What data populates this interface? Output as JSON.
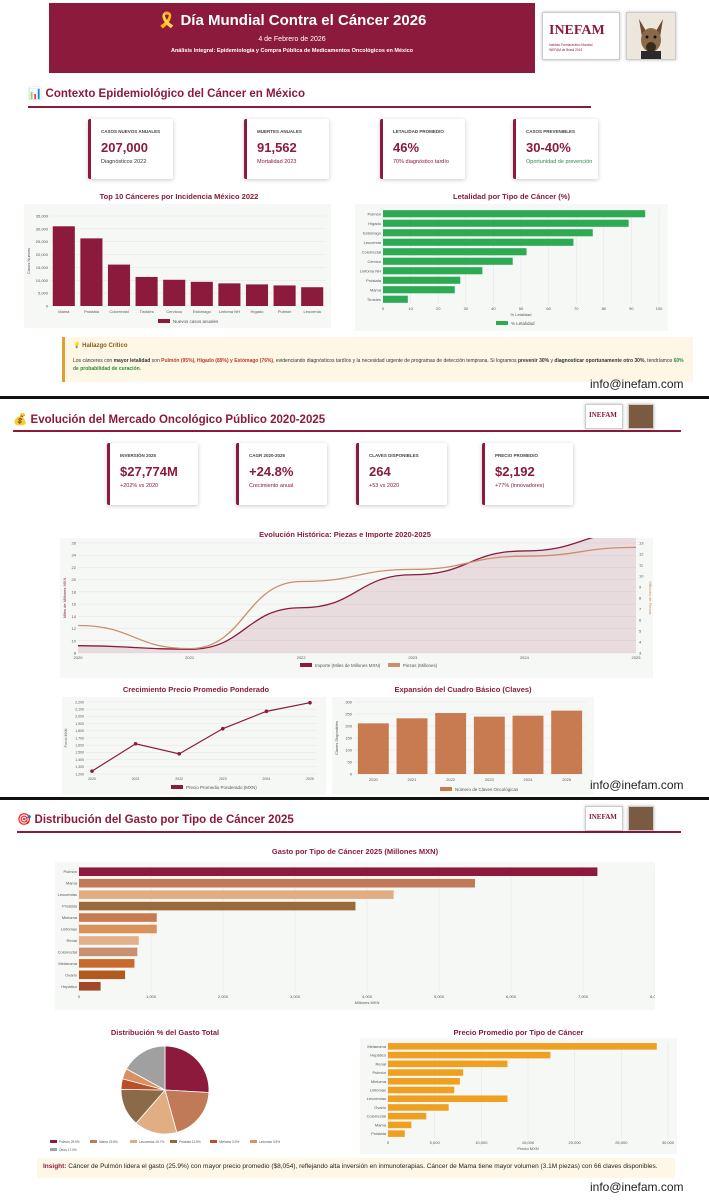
{
  "header": {
    "title": "Día Mundial Contra el Cáncer 2026",
    "date": "4 de Febrero de 2026",
    "subtitle": "Análisis Integral: Epidemiología y Compra Pública de Medicamentos Oncológicos en México",
    "ribbon_icon": "ribbon-icon"
  },
  "logo": {
    "word": "INEFAM",
    "tagline": "Instituto Farmacéutico Mundial",
    "tagline2": "INEFAM de Brasil 2014"
  },
  "email": "info@inefam.com",
  "section1": {
    "icon": "📊",
    "title": "Contexto Epidemiológico del Cáncer en México",
    "kpis": [
      {
        "label": "Casos nuevos anuales",
        "value": "207,000",
        "note": "Diagnósticos 2022",
        "note_color": "#333333"
      },
      {
        "label": "Muertes anuales",
        "value": "91,562",
        "note": "Mortalidad 2023",
        "note_color": "#8b1a3c"
      },
      {
        "label": "Letalidad promedio",
        "value": "46%",
        "note": "70% diagnóstico tardío",
        "note_color": "#8b1a3c"
      },
      {
        "label": "Casos prevenibles",
        "value": "30-40%",
        "note": "Oportunidad de prevención",
        "note_color": "#2e8b3a"
      }
    ],
    "alert": {
      "title": "💡 Hallazgo Crítico",
      "p1": "Los cánceres con ",
      "s1": "mayor letalidad",
      "p2": " son ",
      "s2": "Pulmón (95%), Hígado (89%) y Estómago (76%)",
      "p3": ", evidenciando diagnósticos tardíos y la necesidad urgente de programas de detección temprana. Si logramos ",
      "s3": "prevenir 30%",
      "p4": " y ",
      "s4": "diagnosticar oportunamente otro 30%",
      "p5": ", tendríamos ",
      "s5": "60% de probabilidad de curación",
      "p6": "."
    }
  },
  "section2": {
    "icon": "💰",
    "title": "Evolución del Mercado Oncológico Público 2020-2025",
    "kpis": [
      {
        "label": "Inversión 2025",
        "value": "$27,774M",
        "note": "+202% vs 2020",
        "note_color": "#8b1a3c"
      },
      {
        "label": "CAGR 2020-2025",
        "value": "+24.8%",
        "note": "Crecimiento anual",
        "note_color": "#8b1a3c"
      },
      {
        "label": "Claves disponibles",
        "value": "264",
        "note": "+53 vs 2020",
        "note_color": "#8b1a3c"
      },
      {
        "label": "Precio promedio",
        "value": "$2,192",
        "note": "+77% (innovadores)",
        "note_color": "#8b1a3c"
      }
    ]
  },
  "section3": {
    "icon": "🎯",
    "title": "Distribución del Gasto por Tipo de Cáncer 2025",
    "insight_label": "Insight:",
    "insight_text": " Cáncer de Pulmón lidera el gasto (25.9%) con mayor precio promedio ($8,054), reflejando alta inversión en inmunoterapias. Cáncer de Mama tiene mayor volumen (3.1M piezas) con 66 claves disponibles."
  },
  "chart_data": [
    {
      "id": "top10",
      "type": "bar",
      "title": "Top 10 Cánceres por Incidencia México 2022",
      "ylabel": "Casos Nuevos",
      "legend": "Nuevos casos anuales",
      "ylim": [
        0,
        35000
      ],
      "yticks": [
        "0",
        "5,000",
        "10,000",
        "15,000",
        "20,000",
        "25,000",
        "30,000",
        "35,000"
      ],
      "categories": [
        "Mama",
        "Próstata",
        "Colorrectal",
        "Tiroides",
        "Cervicou",
        "Estómago",
        "Linfoma NH",
        "Hígado",
        "Pulmón",
        "Leucemia"
      ],
      "values": [
        31000,
        26300,
        16100,
        11300,
        10200,
        9400,
        8800,
        8400,
        8000,
        7300
      ],
      "color": "#8b1a3c"
    },
    {
      "id": "letalidad",
      "type": "bar",
      "orientation": "horizontal",
      "title": "Letalidad por Tipo de Cáncer (%)",
      "xlabel": "% Letalidad",
      "legend": "% Letalidad",
      "xlim": [
        0,
        100
      ],
      "xticks": [
        "0",
        "10",
        "20",
        "30",
        "40",
        "50",
        "60",
        "70",
        "80",
        "90",
        "100"
      ],
      "categories": [
        "Pulmón",
        "Hígado",
        "Estómago",
        "Leucemia",
        "Colorrectal",
        "Cérvico",
        "Linfoma NH",
        "Próstata",
        "Mama",
        "Tiroides"
      ],
      "values": [
        95,
        89,
        76,
        69,
        52,
        47,
        36,
        28,
        26,
        9
      ],
      "color": "#2eaa55"
    },
    {
      "id": "evolucion",
      "type": "line",
      "title": "Evolución Histórica: Piezas e Importe 2020-2025",
      "ylabel_left": "Miles de Millones MXN",
      "ylabel_right": "Millones de Piezas",
      "x": [
        "2020",
        "2021",
        "2022",
        "2023",
        "2024",
        "2025"
      ],
      "ylim_left": [
        8,
        26
      ],
      "yticks_left": [
        "8",
        "10",
        "12",
        "14",
        "16",
        "18",
        "20",
        "22",
        "24",
        "26"
      ],
      "ylim_right": [
        3,
        13
      ],
      "yticks_right": [
        "3",
        "4",
        "5",
        "6",
        "7",
        "8",
        "9",
        "10",
        "11",
        "12",
        "13"
      ],
      "series": [
        {
          "name": "Importe (Miles de Millones MXN)",
          "values": [
            9.2,
            8.6,
            15.4,
            20.8,
            24.7,
            27.8
          ],
          "axis": "left",
          "color": "#8b1a3c",
          "fill": true
        },
        {
          "name": "Piezas (Millones)",
          "values": [
            5.5,
            3.4,
            9.5,
            10.6,
            11.8,
            12.6
          ],
          "axis": "right",
          "color": "#c9906a",
          "fill": false
        }
      ]
    },
    {
      "id": "precio",
      "type": "line",
      "title": "Crecimiento Precio Promedio Ponderado",
      "ylabel": "Precio MXN",
      "legend": "Precio Promedio Ponderado (MXN)",
      "x": [
        "2020",
        "2021",
        "2022",
        "2023",
        "2024",
        "2025"
      ],
      "ylim": [
        1200,
        2200
      ],
      "yticks": [
        "1,200",
        "1,300",
        "1,400",
        "1,500",
        "1,600",
        "1,700",
        "1,800",
        "1,900",
        "2,000",
        "2,100",
        "2,200"
      ],
      "values": [
        1240,
        1620,
        1480,
        1830,
        2070,
        2190
      ],
      "color": "#8b1a3c"
    },
    {
      "id": "claves",
      "type": "bar",
      "title": "Expansión del Cuadro Básico (Claves)",
      "ylabel": "Claves Disponibles",
      "legend": "Número de Claves Oncológicas",
      "ylim": [
        0,
        300
      ],
      "yticks": [
        "0",
        "50",
        "100",
        "150",
        "200",
        "250",
        "300"
      ],
      "categories": [
        "2020",
        "2021",
        "2022",
        "2023",
        "2024",
        "2025"
      ],
      "values": [
        211,
        232,
        254,
        239,
        243,
        264
      ],
      "color": "#c87b50"
    },
    {
      "id": "gasto",
      "type": "bar",
      "orientation": "horizontal",
      "title": "Gasto por Tipo de Cáncer 2025 (Millones MXN)",
      "xlabel": "Millones MXN",
      "xlim": [
        0,
        8000
      ],
      "xticks": [
        "0",
        "1,000",
        "2,000",
        "3,000",
        "4,000",
        "5,000",
        "6,000",
        "7,000",
        "8,000"
      ],
      "categories": [
        "Pulmón",
        "Mama",
        "Leucemias",
        "Próstata",
        "Mieloma",
        "Linfomas",
        "Renal",
        "Colorrectal",
        "Melanoma",
        "Ovario",
        "Hepático"
      ],
      "values": [
        7200,
        5500,
        4370,
        3840,
        1080,
        1080,
        830,
        810,
        770,
        640,
        300
      ],
      "colors": [
        "#8b1a3c",
        "#c07a58",
        "#e0ae82",
        "#9a6a3a",
        "#c87b50",
        "#d8925a",
        "#e0b08a",
        "#c89070",
        "#c86a30",
        "#b05a20",
        "#a04828"
      ]
    },
    {
      "id": "distribucion",
      "type": "pie",
      "title": "Distribución % del Gasto Total",
      "categories": [
        "Pulmón",
        "Mama",
        "Leucemias",
        "Próstata",
        "Mieloma",
        "Linfomas",
        "Otros"
      ],
      "values": [
        25.9,
        19.8,
        15.7,
        13.8,
        3.9,
        3.9,
        17.0
      ],
      "legend_labels": [
        "Pulmón 25.9%",
        "Mama 19.8%",
        "Leucemias 15.7%",
        "Próstata 13.8%",
        "Mieloma 3.9%",
        "Linfomas 3.9%",
        "Otros 17.0%"
      ],
      "colors": [
        "#8b1a3c",
        "#c07a58",
        "#e0ae82",
        "#8a6a48",
        "#b8502a",
        "#d89060",
        "#a0a0a0"
      ]
    },
    {
      "id": "preciotipo",
      "type": "bar",
      "orientation": "horizontal",
      "title": "Precio Promedio por Tipo de Cáncer",
      "xlabel": "Precio MXN",
      "xlim": [
        0,
        30000
      ],
      "xticks": [
        "0",
        "5,000",
        "10,000",
        "15,000",
        "20,000",
        "25,000",
        "30,000"
      ],
      "categories": [
        "Melanoma",
        "Hepático",
        "Renal",
        "Pulmón",
        "Mieloma",
        "Linfomas",
        "Leucemias",
        "Ovario",
        "Colorrectal",
        "Mama",
        "Próstata"
      ],
      "values": [
        28800,
        17400,
        12800,
        8054,
        7700,
        7100,
        12800,
        6500,
        4100,
        2500,
        1800
      ],
      "color": "#f0a020"
    }
  ]
}
